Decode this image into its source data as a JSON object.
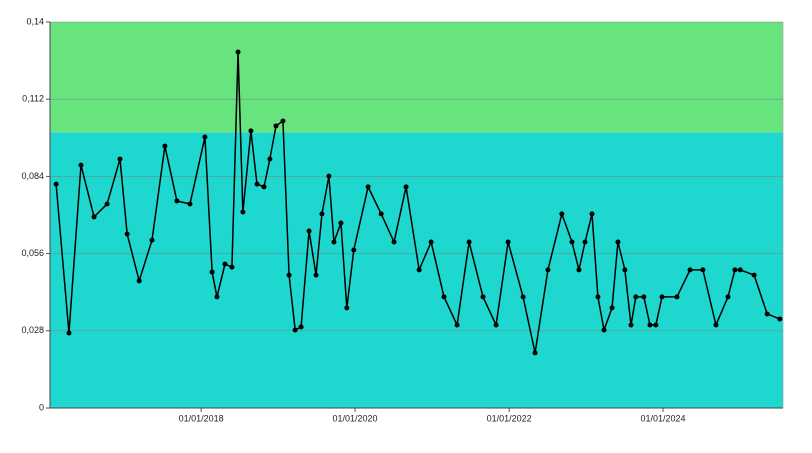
{
  "chart_data": {
    "type": "line",
    "x": [
      "2016-02-13",
      "2016-04-14",
      "2016-06-10",
      "2016-08-11",
      "2016-10-12",
      "2016-12-12",
      "2017-01-15",
      "2017-03-13",
      "2017-05-13",
      "2017-07-13",
      "2017-09-08",
      "2017-11-09",
      "2018-01-19",
      "2018-02-22",
      "2018-03-17",
      "2018-04-24",
      "2018-05-27",
      "2018-06-25",
      "2018-07-18",
      "2018-08-25",
      "2018-09-23",
      "2018-10-26",
      "2018-11-23",
      "2018-12-22",
      "2019-01-24",
      "2019-02-22",
      "2019-03-23",
      "2019-04-20",
      "2019-05-28",
      "2019-06-30",
      "2019-07-28",
      "2019-08-30",
      "2019-09-23",
      "2019-10-26",
      "2019-11-23",
      "2019-12-26",
      "2020-03-03",
      "2020-05-04",
      "2020-07-04",
      "2020-08-30",
      "2020-10-31",
      "2020-12-27",
      "2021-02-26",
      "2021-04-29",
      "2021-06-25",
      "2021-08-30",
      "2021-10-31",
      "2021-12-27",
      "2022-03-08",
      "2022-05-04",
      "2022-07-04",
      "2022-09-08",
      "2022-10-26",
      "2022-11-28",
      "2022-12-27",
      "2023-01-29",
      "2023-02-26",
      "2023-03-27",
      "2023-05-04",
      "2023-06-01",
      "2023-07-04",
      "2023-08-02",
      "2023-08-25",
      "2023-10-02",
      "2023-10-31",
      "2023-11-28",
      "2023-12-27",
      "2024-03-07",
      "2024-05-08",
      "2024-07-08",
      "2024-09-08",
      "2024-11-04",
      "2024-12-07",
      "2025-01-01",
      "2025-03-08",
      "2025-05-09",
      "2025-07-08"
    ],
    "series": [
      {
        "color": "#000000",
        "values": [
          0.0812,
          0.0272,
          0.0881,
          0.0693,
          0.074,
          0.0903,
          0.0631,
          0.0461,
          0.0609,
          0.095,
          0.0751,
          0.074,
          0.0983,
          0.0493,
          0.0403,
          0.0522,
          0.0511,
          0.1291,
          0.0711,
          0.1005,
          0.0812,
          0.0802,
          0.0903,
          0.1023,
          0.1041,
          0.0482,
          0.0283,
          0.0294,
          0.0642,
          0.0482,
          0.0704,
          0.0841,
          0.0602,
          0.0671,
          0.0363,
          0.0573,
          0.0802,
          0.0704,
          0.0602,
          0.0802,
          0.0501,
          0.0602,
          0.0403,
          0.0301,
          0.0602,
          0.0403,
          0.0301,
          0.0602,
          0.0403,
          0.02,
          0.0501,
          0.0704,
          0.0602,
          0.0501,
          0.0602,
          0.0704,
          0.0403,
          0.0283,
          0.0363,
          0.0602,
          0.0501,
          0.0301,
          0.0403,
          0.0403,
          0.0301,
          0.0301,
          0.0403,
          0.0403,
          0.0501,
          0.0501,
          0.0301,
          0.0403,
          0.0501,
          0.0501,
          0.0482,
          0.0341,
          0.0323
        ]
      }
    ],
    "xlim": [
      "2016-01-15",
      "2025-07-23"
    ],
    "xticks": [
      {
        "value": "2018-01-01",
        "label": "01/01/2018"
      },
      {
        "value": "2020-01-01",
        "label": "01/01/2020"
      },
      {
        "value": "2022-01-01",
        "label": "01/01/2022"
      },
      {
        "value": "2024-01-01",
        "label": "01/01/2024"
      }
    ],
    "ylim": [
      0,
      0.14
    ],
    "yticks": [
      0,
      {
        "value": 0.028,
        "label": "0,028"
      },
      {
        "value": 0.056,
        "label": "0,056"
      },
      {
        "value": 0.084,
        "label": "0,084"
      },
      {
        "value": 0.112,
        "label": "0,112"
      },
      {
        "value": 0.14,
        "label": "0,14"
      }
    ],
    "grid": true,
    "bands": [
      {
        "from": 0,
        "to": 0.1,
        "color": "#1ed8cf"
      },
      {
        "from": 0.1,
        "to": 0.14,
        "color": "#68e47f"
      }
    ]
  }
}
